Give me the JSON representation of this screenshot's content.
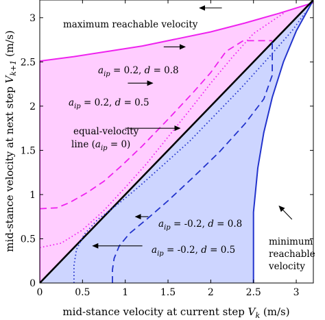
{
  "chart_data": {
    "type": "line",
    "xlabel": "mid-stance velocity at current step V_k (m/s)",
    "ylabel": "mid-stance velocity at next step V_{k+1} (m/s)",
    "xlim": [
      0,
      3.2
    ],
    "ylim": [
      0,
      3.2
    ],
    "x_ticks": [
      "0",
      "0.5",
      "1",
      "1.5",
      "2",
      "2.5",
      "3"
    ],
    "y_ticks": [
      "0",
      "0.5",
      "1",
      "1.5",
      "2",
      "2.5",
      "3"
    ],
    "grid": false,
    "legend": "none",
    "colors": {
      "upper_region": "#ff66ff",
      "lower_region": "#3355dd",
      "equal_line": "#000000"
    },
    "regions": [
      {
        "id": "upper",
        "x": [
          0,
          0.4,
          0.8,
          1.2,
          1.6,
          2.0,
          2.4,
          2.8,
          3.2
        ],
        "y": [
          2.51,
          2.56,
          2.62,
          2.68,
          2.76,
          2.84,
          2.94,
          3.05,
          3.17
        ]
      },
      {
        "id": "lower",
        "x": [
          2.5,
          2.5,
          2.55,
          2.62,
          2.72,
          2.85,
          3.0,
          3.2
        ],
        "y": [
          0,
          0.8,
          1.3,
          1.7,
          2.1,
          2.5,
          2.85,
          3.2
        ]
      }
    ],
    "series": [
      {
        "id": "max",
        "style": "solid",
        "color": "#ee22ee",
        "x": [
          0,
          0,
          0.4,
          0.8,
          1.2,
          1.6,
          2.0,
          2.4,
          2.8,
          3.2
        ],
        "y": [
          0,
          2.51,
          2.56,
          2.62,
          2.68,
          2.76,
          2.84,
          2.94,
          3.05,
          3.17
        ]
      },
      {
        "id": "min",
        "style": "solid",
        "color": "#2233cc",
        "x": [
          2.5,
          2.5,
          2.55,
          2.62,
          2.72,
          2.85,
          3.0,
          3.2
        ],
        "y": [
          0,
          0.8,
          1.3,
          1.7,
          2.1,
          2.5,
          2.85,
          3.2
        ]
      },
      {
        "id": "equal",
        "style": "solid",
        "color": "#000000",
        "x": [
          0,
          3.2
        ],
        "y": [
          0,
          3.2
        ]
      },
      {
        "id": "upper-08",
        "style": "dashed",
        "color": "#ee22ee",
        "x": [
          0,
          0.2,
          0.35,
          0.55,
          0.75,
          0.95,
          1.2,
          1.5,
          1.8,
          2.0,
          2.18,
          2.38,
          2.72
        ],
        "y": [
          0.84,
          0.85,
          0.91,
          1.02,
          1.15,
          1.32,
          1.55,
          1.85,
          2.16,
          2.38,
          2.62,
          2.74,
          2.74
        ]
      },
      {
        "id": "upper-05",
        "style": "dotted",
        "color": "#ee22ee",
        "x": [
          0,
          0.25,
          0.5,
          0.75,
          1.0,
          1.25,
          1.5,
          1.75,
          2.0,
          2.25,
          2.5,
          2.85
        ],
        "y": [
          0.4,
          0.45,
          0.6,
          0.82,
          1.08,
          1.35,
          1.65,
          1.95,
          2.26,
          2.55,
          2.82,
          3.05
        ]
      },
      {
        "id": "lower-08",
        "style": "dashed",
        "color": "#2233cc",
        "x": [
          0.85,
          0.85,
          0.87,
          0.93,
          1.05,
          1.25,
          1.5,
          1.8,
          2.1,
          2.4,
          2.62,
          2.72,
          2.72
        ],
        "y": [
          0,
          0.15,
          0.28,
          0.42,
          0.56,
          0.72,
          0.93,
          1.2,
          1.48,
          1.8,
          2.08,
          2.35,
          2.75
        ]
      },
      {
        "id": "lower-05",
        "style": "dotted",
        "color": "#2233cc",
        "x": [
          0.4,
          0.4,
          0.43,
          0.52,
          0.68,
          0.9,
          1.15,
          1.45,
          1.75,
          2.05,
          2.35,
          2.65,
          2.95,
          3.1
        ],
        "y": [
          0,
          0.2,
          0.38,
          0.55,
          0.72,
          0.88,
          1.08,
          1.34,
          1.6,
          1.9,
          2.2,
          2.52,
          2.85,
          3.05
        ]
      }
    ],
    "annotations": [
      {
        "id": "max-reach",
        "text": "maximum reachable velocity",
        "x": 0.3,
        "y": 3.08
      },
      {
        "id": "upper-08",
        "lines": [
          "a_ip = 0.2, d = 0.8"
        ],
        "x": 0.72,
        "y": 2.67
      },
      {
        "id": "upper-05",
        "lines": [
          "a_ip = 0.2, d = 0.5"
        ],
        "x": 0.35,
        "y": 2.25
      },
      {
        "id": "equal",
        "lines": [
          "equal-velocity",
          "line (a_ip = 0)"
        ],
        "x": 0.5,
        "y": 1.83
      },
      {
        "id": "lower-08",
        "lines": [
          "a_ip = -0.2, d = 0.8"
        ],
        "x": 1.3,
        "y": 0.73
      },
      {
        "id": "lower-05",
        "lines": [
          "a_ip = -0.2, d = 0.5"
        ],
        "x": 1.22,
        "y": 0.4
      },
      {
        "id": "min-reach",
        "lines": [
          "minimum",
          "reachable",
          "velocity"
        ],
        "x": 2.9,
        "y": 0.58
      }
    ],
    "arrows": [
      {
        "id": "a-max",
        "from": [
          2.13,
          3.11
        ],
        "to": [
          1.87,
          3.11
        ]
      },
      {
        "id": "a-up08",
        "from": [
          1.45,
          2.67
        ],
        "to": [
          1.7,
          2.67
        ]
      },
      {
        "id": "a-up05",
        "from": [
          1.03,
          2.26
        ],
        "to": [
          1.32,
          2.26
        ]
      },
      {
        "id": "a-eq",
        "from": [
          1.0,
          1.75
        ],
        "to": [
          1.64,
          1.75
        ]
      },
      {
        "id": "a-lo08",
        "from": [
          1.27,
          0.75
        ],
        "to": [
          1.12,
          0.75
        ]
      },
      {
        "id": "a-lo05",
        "from": [
          1.2,
          0.42
        ],
        "to": [
          0.62,
          0.42
        ]
      },
      {
        "id": "a-min",
        "from": [
          2.95,
          0.72
        ],
        "to": [
          2.8,
          0.87
        ]
      }
    ]
  }
}
